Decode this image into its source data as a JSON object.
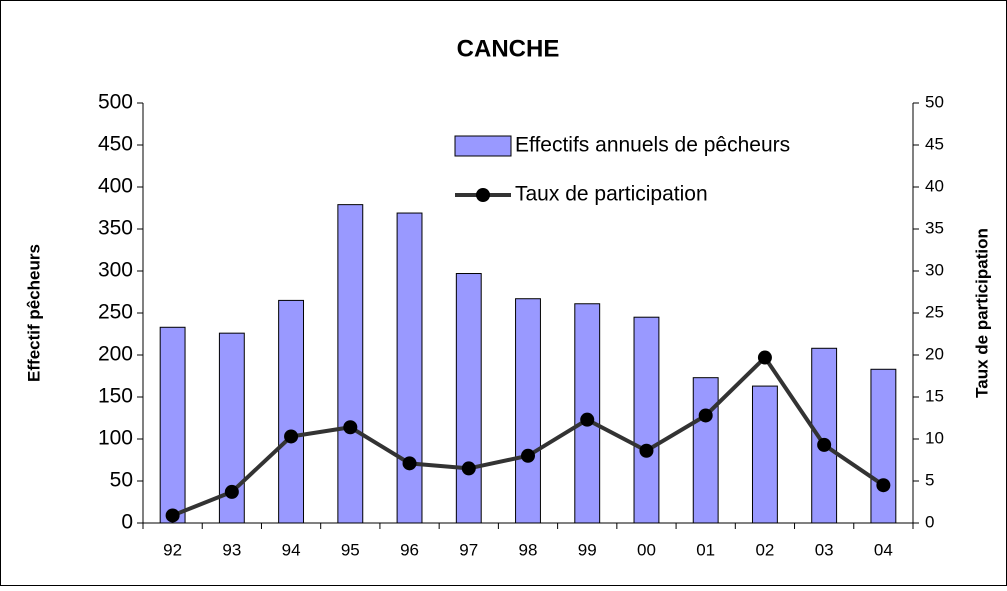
{
  "chart_data": {
    "type": "bar",
    "title": "CANCHE",
    "ylabel": "Effectif pêcheurs",
    "y2label": "Taux de participation",
    "categories": [
      "92",
      "93",
      "94",
      "95",
      "96",
      "97",
      "98",
      "99",
      "00",
      "01",
      "02",
      "03",
      "04"
    ],
    "series": [
      {
        "name": "Effectifs annuels de pêcheurs",
        "type": "bar",
        "color": "#9999ff",
        "values": [
          233,
          226,
          265,
          379,
          369,
          297,
          267,
          261,
          245,
          173,
          163,
          208,
          183
        ]
      },
      {
        "name": "Taux de participation",
        "type": "line",
        "axis": "y2",
        "color": "#333333",
        "values": [
          0.9,
          3.7,
          10.3,
          11.4,
          7.1,
          6.5,
          8.0,
          12.3,
          8.6,
          12.8,
          19.7,
          9.3,
          4.5
        ]
      }
    ],
    "ylim": [
      0,
      500
    ],
    "yticks": [
      0,
      50,
      100,
      150,
      200,
      250,
      300,
      350,
      400,
      450,
      500
    ],
    "y2lim": [
      0,
      50
    ],
    "y2ticks": [
      0,
      5,
      10,
      15,
      20,
      25,
      30,
      35,
      40,
      45,
      50
    ],
    "legend": "upper right",
    "grid": false
  }
}
